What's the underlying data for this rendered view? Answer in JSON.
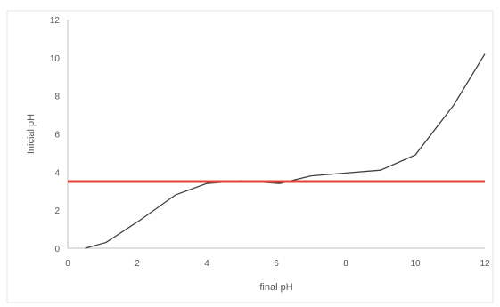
{
  "chart_data": {
    "type": "line",
    "title": "",
    "xlabel": "final pH",
    "ylabel": "Inicial pH",
    "xlim": [
      0,
      12
    ],
    "ylim": [
      0,
      12
    ],
    "x_ticks": [
      "0",
      "2",
      "4",
      "6",
      "8",
      "10",
      "12"
    ],
    "y_ticks": [
      "0",
      "2",
      "4",
      "6",
      "8",
      "10",
      "12"
    ],
    "grid": false,
    "legend": "none",
    "series": [
      {
        "color": "#404040",
        "points": [
          {
            "x": 0.5,
            "y": 0.0
          },
          {
            "x": 1.1,
            "y": 0.3
          },
          {
            "x": 2.1,
            "y": 1.5
          },
          {
            "x": 3.1,
            "y": 2.8
          },
          {
            "x": 4.0,
            "y": 3.4
          },
          {
            "x": 5.0,
            "y": 3.55
          },
          {
            "x": 6.1,
            "y": 3.4
          },
          {
            "x": 7.0,
            "y": 3.8
          },
          {
            "x": 8.0,
            "y": 3.95
          },
          {
            "x": 9.0,
            "y": 4.1
          },
          {
            "x": 10.0,
            "y": 4.9
          },
          {
            "x": 11.1,
            "y": 7.5
          },
          {
            "x": 12.0,
            "y": 10.2
          }
        ]
      }
    ],
    "reference_line": {
      "y": 3.5,
      "color": "#e8403a"
    }
  }
}
